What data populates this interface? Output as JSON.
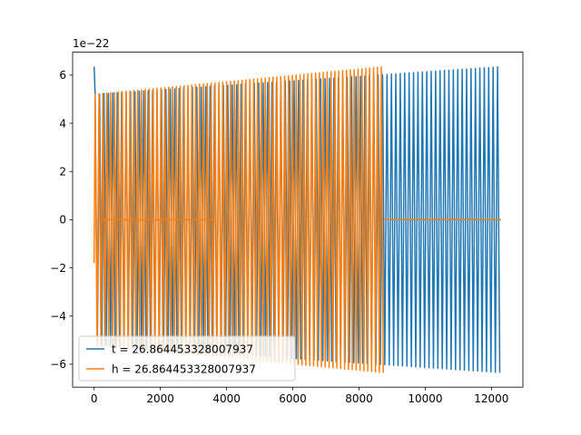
{
  "chart_data": {
    "type": "line",
    "title": "",
    "xlabel": "",
    "ylabel": "",
    "y_offset_label": "1e−22",
    "xlim": [
      -650,
      12950
    ],
    "ylim": [
      -6.95,
      6.95
    ],
    "y_scale_exponent": -22,
    "grid": false,
    "legend_placement": "lower-left",
    "x_ticks": [
      {
        "value": 0,
        "label": "0"
      },
      {
        "value": 2000,
        "label": "2000"
      },
      {
        "value": 4000,
        "label": "4000"
      },
      {
        "value": 6000,
        "label": "6000"
      },
      {
        "value": 8000,
        "label": "8000"
      },
      {
        "value": 10000,
        "label": "10000"
      },
      {
        "value": 12000,
        "label": "12000"
      }
    ],
    "y_ticks": [
      {
        "value": -6,
        "label": "−6"
      },
      {
        "value": -4,
        "label": "−4"
      },
      {
        "value": -2,
        "label": "−2"
      },
      {
        "value": 0,
        "label": "0"
      },
      {
        "value": 2,
        "label": "2"
      },
      {
        "value": 4,
        "label": "4"
      },
      {
        "value": 6,
        "label": "6"
      }
    ],
    "series": [
      {
        "name": "t = 26.864453328007937",
        "color": "#1f77b4",
        "start_value": 6.35,
        "x_range": [
          0,
          12288
        ],
        "envelope_start": 5.2,
        "envelope_end": 6.35,
        "cycles": 92
      },
      {
        "name": "h = 26.864453328007937",
        "color": "#ff7f0e",
        "start_value": -1.8,
        "x_range": [
          0,
          8760
        ],
        "envelope_start": 5.2,
        "envelope_end": 6.35,
        "cycles": 75,
        "flat_zero_segments": [
          [
            100,
            3650
          ],
          [
            8760,
            12288
          ]
        ]
      }
    ]
  }
}
